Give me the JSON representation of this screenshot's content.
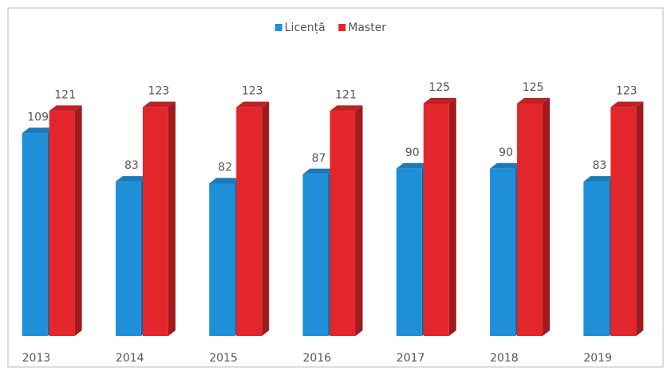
{
  "chart_data": {
    "type": "bar3d",
    "categories": [
      "2013",
      "2014",
      "2015",
      "2016",
      "2017",
      "2018",
      "2019"
    ],
    "series": [
      {
        "name": "Licență",
        "color": "#1f8fd8",
        "values": [
          109,
          83,
          82,
          87,
          90,
          90,
          83
        ]
      },
      {
        "name": "Master",
        "color": "#e3262b",
        "values": [
          121,
          123,
          123,
          121,
          125,
          125,
          123
        ]
      }
    ],
    "legend": "top"
  }
}
